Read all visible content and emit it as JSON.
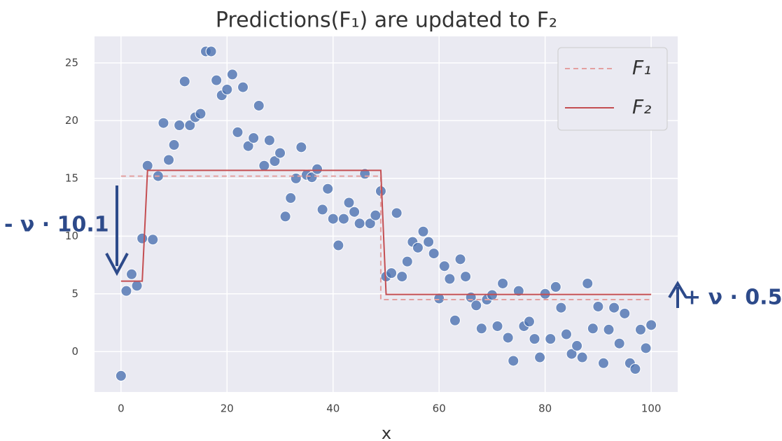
{
  "chart_data": {
    "type": "scatter",
    "title": "Predictions(F₁) are updated to F₂",
    "xlabel": "x",
    "xlim": [
      -5,
      105
    ],
    "ylim": [
      -3.5,
      27.3
    ],
    "xticks": [
      0,
      20,
      40,
      60,
      80,
      100
    ],
    "yticks": [
      0,
      5,
      10,
      15,
      20,
      25
    ],
    "grid": true,
    "legend": "upper right",
    "points": {
      "color": "#4c72b0",
      "x": [
        0,
        1,
        2,
        3,
        4,
        5,
        6,
        7,
        8,
        9,
        10,
        11,
        12,
        13,
        14,
        15,
        16,
        17,
        18,
        19,
        20,
        21,
        22,
        23,
        24,
        25,
        26,
        27,
        28,
        29,
        30,
        31,
        32,
        33,
        34,
        35,
        36,
        37,
        38,
        39,
        40,
        41,
        42,
        43,
        44,
        45,
        46,
        47,
        48,
        49,
        50,
        51,
        52,
        53,
        54,
        55,
        56,
        57,
        58,
        59,
        60,
        61,
        62,
        63,
        64,
        65,
        66,
        67,
        68,
        69,
        70,
        71,
        72,
        73,
        74,
        75,
        76,
        77,
        78,
        79,
        80,
        81,
        82,
        83,
        84,
        85,
        86,
        87,
        88,
        89,
        90,
        91,
        92,
        93,
        94,
        95,
        96,
        97,
        98,
        99,
        100
      ],
      "values": [
        -2.1,
        5.25,
        6.7,
        5.7,
        9.8,
        16.1,
        9.7,
        15.2,
        19.8,
        16.6,
        17.9,
        19.6,
        23.4,
        19.6,
        20.3,
        20.6,
        26,
        26,
        23.5,
        22.2,
        22.7,
        24,
        19,
        22.9,
        17.8,
        18.5,
        21.3,
        16.1,
        18.3,
        16.5,
        17.2,
        11.7,
        13.3,
        15,
        17.7,
        15.3,
        15.1,
        15.8,
        12.3,
        14.1,
        11.5,
        9.2,
        11.5,
        12.9,
        12.1,
        11.1,
        15.4,
        11.1,
        11.8,
        13.9,
        6.5,
        6.8,
        12,
        6.5,
        7.8,
        9.5,
        9,
        10.4,
        9.5,
        8.5,
        4.6,
        7.4,
        6.3,
        2.7,
        8,
        6.5,
        4.7,
        4,
        2,
        4.5,
        4.9,
        2.2,
        5.9,
        1.2,
        -0.8,
        5.25,
        2.2,
        2.6,
        1.1,
        -0.5,
        5,
        1.1,
        5.6,
        3.8,
        1.5,
        -0.2,
        0.5,
        -0.5,
        5.9,
        2,
        3.9,
        -1,
        1.9,
        3.8,
        0.7,
        3.3,
        -1,
        -1.5,
        1.9,
        0.3,
        2.3
      ]
    },
    "series": [
      {
        "name": "F₁",
        "color": "#e3a0a0",
        "style": "dashed",
        "x": [
          0,
          49,
          49,
          100
        ],
        "values": [
          15.2,
          15.2,
          4.5,
          4.5
        ]
      },
      {
        "name": "F₂",
        "color": "#c44e52",
        "style": "solid",
        "x": [
          0,
          4,
          5,
          49,
          50,
          100
        ],
        "values": [
          6.1,
          6.1,
          15.7,
          15.7,
          4.95,
          4.95
        ]
      }
    ],
    "annotations": [
      "- ν · 10.1",
      "+ ν · 0.5"
    ]
  }
}
